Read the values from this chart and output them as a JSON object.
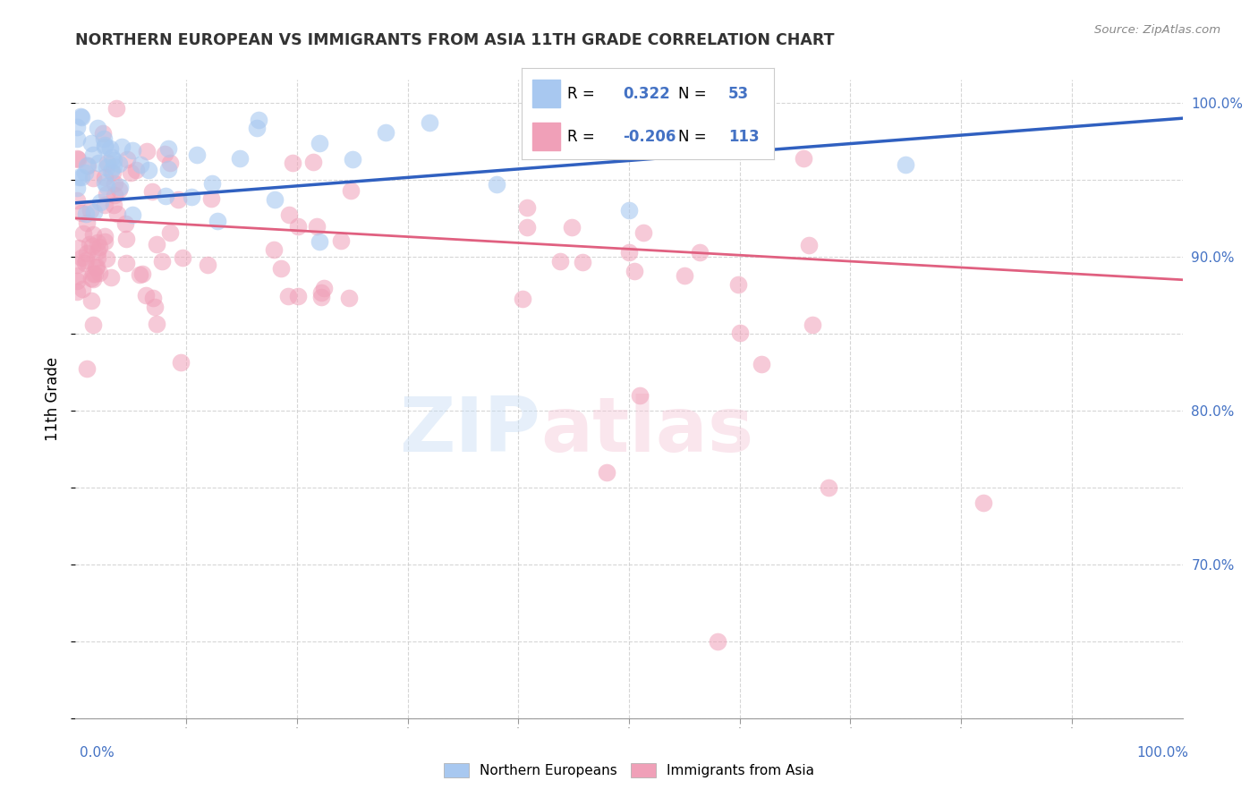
{
  "title": "NORTHERN EUROPEAN VS IMMIGRANTS FROM ASIA 11TH GRADE CORRELATION CHART",
  "source": "Source: ZipAtlas.com",
  "ylabel": "11th Grade",
  "blue_color": "#a8c8f0",
  "pink_color": "#f0a0b8",
  "blue_line_color": "#3060c0",
  "pink_line_color": "#e06080",
  "blue_r": "0.322",
  "blue_n": "53",
  "pink_r": "-0.206",
  "pink_n": "113",
  "ylim_min": 60,
  "ylim_max": 101.5,
  "xlim_min": 0,
  "xlim_max": 100,
  "yticks": [
    70,
    80,
    90,
    100
  ],
  "ytick_labels": [
    "70.0%",
    "80.0%",
    "90.0%",
    "100.0%"
  ],
  "blue_trend_x0": 0,
  "blue_trend_y0": 93.5,
  "blue_trend_x1": 100,
  "blue_trend_y1": 99.0,
  "pink_trend_x0": 0,
  "pink_trend_y0": 92.5,
  "pink_trend_x1": 100,
  "pink_trend_y1": 88.5
}
